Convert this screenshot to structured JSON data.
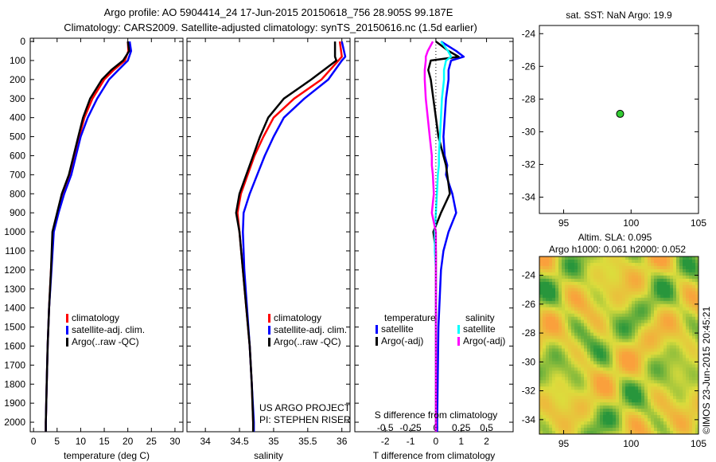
{
  "title": {
    "line1": "Argo profile: AO 5904414_24 17-Jun-2015 20150618_756 28.905S 99.187E",
    "line2": "Climatology: CARS2009. Satellite-adjusted climatology: synTS_20150616.nc (1.5d earlier)"
  },
  "colors": {
    "climatology": "#ff0000",
    "satellite": "#0000ff",
    "argo": "#000000",
    "s_satellite": "#00ffff",
    "s_argo": "#ff00ff",
    "point": "#33cc33"
  },
  "chart_data": [
    {
      "type": "line",
      "name": "temperature",
      "xlabel": "temperature (deg C)",
      "xlim": [
        -0.7,
        31.7
      ],
      "ylim": [
        2050,
        -17
      ],
      "xticks": [
        0,
        5,
        10,
        15,
        20,
        25,
        30
      ],
      "yticks": [
        0,
        100,
        200,
        300,
        400,
        500,
        600,
        700,
        800,
        900,
        1000,
        1100,
        1200,
        1300,
        1400,
        1500,
        1600,
        1700,
        1800,
        1900,
        2000
      ],
      "depth": [
        0,
        50,
        100,
        150,
        200,
        300,
        400,
        500,
        600,
        700,
        800,
        900,
        1000,
        1200,
        1400,
        1600,
        1800,
        2000,
        2050
      ],
      "series": [
        {
          "name": "climatology",
          "color": "#ff0000",
          "values": [
            20,
            20.1,
            19.4,
            17,
            15,
            12.5,
            10.8,
            9.7,
            8.7,
            7.7,
            6.2,
            5.1,
            4.2,
            3.7,
            3.3,
            3.0,
            2.8,
            2.6,
            2.6
          ]
        },
        {
          "name": "satellite-adj. clim.",
          "color": "#0000ff",
          "values": [
            20.4,
            20.7,
            20,
            18,
            16,
            13.5,
            11.5,
            10,
            9,
            8,
            6.5,
            5.3,
            4.3,
            3.8,
            3.3,
            3.0,
            2.8,
            2.6,
            2.6
          ]
        },
        {
          "name": "Argo(..raw -QC)",
          "color": "#000000",
          "values": [
            20,
            20.3,
            19,
            16.5,
            14.5,
            12,
            10.5,
            9.5,
            8.5,
            7.5,
            6,
            5,
            4,
            3.7,
            3.3,
            3,
            2.8,
            2.6,
            2.6
          ]
        }
      ],
      "legend": [
        "climatology",
        "satellite-adj. clim.",
        "Argo(..raw -QC)"
      ]
    },
    {
      "type": "line",
      "name": "salinity",
      "xlabel": "salinity",
      "xlim": [
        33.73,
        36.12
      ],
      "ylim": [
        2050,
        -17
      ],
      "xticks": [
        34,
        34.5,
        35,
        35.5,
        36
      ],
      "xticklabels": [
        "34",
        "34.5",
        "35",
        "35.5",
        "36"
      ],
      "depth": [
        0,
        80,
        100,
        200,
        300,
        400,
        500,
        600,
        700,
        800,
        900,
        1000,
        1200,
        1400,
        1600,
        1800,
        2000,
        2050
      ],
      "series": [
        {
          "name": "climatology",
          "color": "#ff0000",
          "values": [
            35.97,
            36.0,
            35.95,
            35.7,
            35.3,
            35.0,
            34.85,
            34.72,
            34.62,
            34.52,
            34.47,
            34.5,
            34.55,
            34.6,
            34.65,
            34.68,
            34.7,
            34.7
          ]
        },
        {
          "name": "satellite-adj. clim.",
          "color": "#0000ff",
          "values": [
            36.0,
            36.05,
            36.0,
            35.8,
            35.45,
            35.15,
            35.0,
            34.87,
            34.76,
            34.65,
            34.56,
            34.55,
            34.57,
            34.61,
            34.65,
            34.68,
            34.71,
            34.71
          ]
        },
        {
          "name": "Argo(..raw -QC)",
          "color": "#000000",
          "values": [
            35.9,
            35.9,
            35.92,
            35.55,
            35.15,
            34.92,
            34.8,
            34.7,
            34.6,
            34.5,
            34.45,
            34.5,
            34.55,
            34.6,
            34.65,
            34.68,
            34.7,
            34.7
          ]
        }
      ],
      "legend": [
        "climatology",
        "satellite-adj. clim.",
        "Argo(..raw -QC)"
      ],
      "annotation": [
        "US ARGO PROJECT",
        "PI: STEPHEN RISER"
      ]
    },
    {
      "type": "line",
      "name": "difference",
      "xlabel": "T difference from climatology",
      "x2label": "S difference from climatology",
      "xlim": [
        -3.2,
        3.05
      ],
      "ylim": [
        2050,
        -17
      ],
      "xticks": [
        -2,
        -1,
        0,
        1,
        2
      ],
      "x2ticks": [
        -0.5,
        -0.25,
        0,
        0.25,
        0.5
      ],
      "x2ticklabels": [
        "-0.5",
        "-0.25",
        "0",
        "0.25",
        "0.5"
      ],
      "s_scale": 4,
      "depth": [
        0,
        50,
        80,
        100,
        150,
        200,
        300,
        400,
        500,
        600,
        650,
        700,
        800,
        900,
        1000,
        1100,
        1200,
        1500,
        2000,
        2050
      ],
      "series": [
        {
          "name": "temperature satellite",
          "color": "#0000ff",
          "values": [
            0.2,
            0.8,
            1.1,
            0.6,
            0.5,
            0.5,
            0.4,
            0.35,
            0.3,
            0.35,
            0.45,
            0.4,
            0.65,
            0.8,
            0.5,
            0.3,
            0.2,
            0.1,
            0.05,
            0.05
          ]
        },
        {
          "name": "temperature Argo(-adj)",
          "color": "#000000",
          "values": [
            0,
            0.5,
            0.9,
            -0.2,
            -0.3,
            -0.2,
            -0.1,
            0,
            0.1,
            0.3,
            0.4,
            0.45,
            0.55,
            0.2,
            -0.1,
            0,
            0,
            0,
            0,
            0
          ]
        },
        {
          "name": "salinity satellite",
          "color": "#00ffff",
          "values": [
            0.05,
            0.12,
            0.15,
            0.1,
            0.08,
            0.08,
            0.06,
            0.05,
            0.04,
            0.03,
            0.03,
            0.02,
            0.01,
            0,
            -0.01,
            -0.01,
            0,
            0,
            0,
            0
          ]
        },
        {
          "name": "salinity Argo(-adj)",
          "color": "#ff00ff",
          "values": [
            -0.03,
            -0.08,
            -0.1,
            -0.1,
            -0.11,
            -0.11,
            -0.1,
            -0.08,
            -0.06,
            -0.04,
            -0.04,
            -0.03,
            -0.02,
            -0.04,
            0,
            0,
            0,
            0,
            0,
            0
          ]
        }
      ],
      "legend": {
        "temperature": "temperature",
        "salinity": "salinity",
        "items": [
          "satellite",
          "Argo(-adj)",
          "satellite",
          "Argo(-adj)"
        ]
      }
    },
    {
      "type": "scatter",
      "name": "location",
      "title": "sat. SST: NaN Argo: 19.9",
      "xlim": [
        93.2,
        105
      ],
      "ylim": [
        -35,
        -23.5
      ],
      "xticks": [
        95,
        100,
        105
      ],
      "yticks": [
        -24,
        -26,
        -28,
        -30,
        -32,
        -34
      ],
      "points": [
        {
          "lon": 99.187,
          "lat": -28.905
        }
      ]
    },
    {
      "type": "heatmap",
      "name": "sla",
      "title1": "Altim. SLA: 0.095",
      "title2": "Argo h1000: 0.061 h2000: 0.052",
      "xlim": [
        93.2,
        105
      ],
      "ylim": [
        -35,
        -22.7
      ],
      "xticks": [
        95,
        100,
        105
      ],
      "yticks": [
        -24,
        -26,
        -28,
        -30,
        -32,
        -34
      ]
    }
  ],
  "credit": "©IMOS 23-Jun-2015 20:45:21"
}
